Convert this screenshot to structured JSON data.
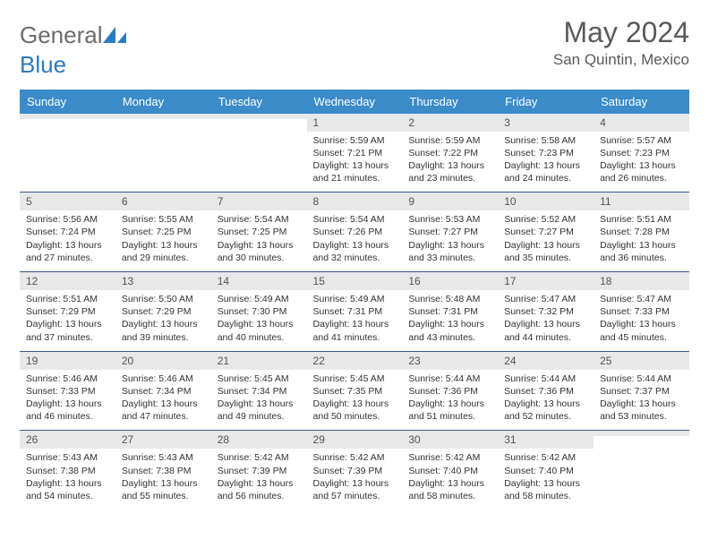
{
  "brand": {
    "left": "General",
    "right": "Blue"
  },
  "title": "May 2024",
  "location": "San Quintin, Mexico",
  "colors": {
    "header_bg": "#3b8bc9",
    "header_text": "#ffffff",
    "daynum_bg": "#e8e8e8",
    "row_border": "#3b5998",
    "logo_gray": "#6b6b6b",
    "logo_blue": "#2b7bbf",
    "text": "#333333"
  },
  "weekdays": [
    "Sunday",
    "Monday",
    "Tuesday",
    "Wednesday",
    "Thursday",
    "Friday",
    "Saturday"
  ],
  "weeks": [
    [
      {
        "empty": true
      },
      {
        "empty": true
      },
      {
        "empty": true
      },
      {
        "day": "1",
        "sunrise": "Sunrise: 5:59 AM",
        "sunset": "Sunset: 7:21 PM",
        "daylight": "Daylight: 13 hours and 21 minutes."
      },
      {
        "day": "2",
        "sunrise": "Sunrise: 5:59 AM",
        "sunset": "Sunset: 7:22 PM",
        "daylight": "Daylight: 13 hours and 23 minutes."
      },
      {
        "day": "3",
        "sunrise": "Sunrise: 5:58 AM",
        "sunset": "Sunset: 7:23 PM",
        "daylight": "Daylight: 13 hours and 24 minutes."
      },
      {
        "day": "4",
        "sunrise": "Sunrise: 5:57 AM",
        "sunset": "Sunset: 7:23 PM",
        "daylight": "Daylight: 13 hours and 26 minutes."
      }
    ],
    [
      {
        "day": "5",
        "sunrise": "Sunrise: 5:56 AM",
        "sunset": "Sunset: 7:24 PM",
        "daylight": "Daylight: 13 hours and 27 minutes."
      },
      {
        "day": "6",
        "sunrise": "Sunrise: 5:55 AM",
        "sunset": "Sunset: 7:25 PM",
        "daylight": "Daylight: 13 hours and 29 minutes."
      },
      {
        "day": "7",
        "sunrise": "Sunrise: 5:54 AM",
        "sunset": "Sunset: 7:25 PM",
        "daylight": "Daylight: 13 hours and 30 minutes."
      },
      {
        "day": "8",
        "sunrise": "Sunrise: 5:54 AM",
        "sunset": "Sunset: 7:26 PM",
        "daylight": "Daylight: 13 hours and 32 minutes."
      },
      {
        "day": "9",
        "sunrise": "Sunrise: 5:53 AM",
        "sunset": "Sunset: 7:27 PM",
        "daylight": "Daylight: 13 hours and 33 minutes."
      },
      {
        "day": "10",
        "sunrise": "Sunrise: 5:52 AM",
        "sunset": "Sunset: 7:27 PM",
        "daylight": "Daylight: 13 hours and 35 minutes."
      },
      {
        "day": "11",
        "sunrise": "Sunrise: 5:51 AM",
        "sunset": "Sunset: 7:28 PM",
        "daylight": "Daylight: 13 hours and 36 minutes."
      }
    ],
    [
      {
        "day": "12",
        "sunrise": "Sunrise: 5:51 AM",
        "sunset": "Sunset: 7:29 PM",
        "daylight": "Daylight: 13 hours and 37 minutes."
      },
      {
        "day": "13",
        "sunrise": "Sunrise: 5:50 AM",
        "sunset": "Sunset: 7:29 PM",
        "daylight": "Daylight: 13 hours and 39 minutes."
      },
      {
        "day": "14",
        "sunrise": "Sunrise: 5:49 AM",
        "sunset": "Sunset: 7:30 PM",
        "daylight": "Daylight: 13 hours and 40 minutes."
      },
      {
        "day": "15",
        "sunrise": "Sunrise: 5:49 AM",
        "sunset": "Sunset: 7:31 PM",
        "daylight": "Daylight: 13 hours and 41 minutes."
      },
      {
        "day": "16",
        "sunrise": "Sunrise: 5:48 AM",
        "sunset": "Sunset: 7:31 PM",
        "daylight": "Daylight: 13 hours and 43 minutes."
      },
      {
        "day": "17",
        "sunrise": "Sunrise: 5:47 AM",
        "sunset": "Sunset: 7:32 PM",
        "daylight": "Daylight: 13 hours and 44 minutes."
      },
      {
        "day": "18",
        "sunrise": "Sunrise: 5:47 AM",
        "sunset": "Sunset: 7:33 PM",
        "daylight": "Daylight: 13 hours and 45 minutes."
      }
    ],
    [
      {
        "day": "19",
        "sunrise": "Sunrise: 5:46 AM",
        "sunset": "Sunset: 7:33 PM",
        "daylight": "Daylight: 13 hours and 46 minutes."
      },
      {
        "day": "20",
        "sunrise": "Sunrise: 5:46 AM",
        "sunset": "Sunset: 7:34 PM",
        "daylight": "Daylight: 13 hours and 47 minutes."
      },
      {
        "day": "21",
        "sunrise": "Sunrise: 5:45 AM",
        "sunset": "Sunset: 7:34 PM",
        "daylight": "Daylight: 13 hours and 49 minutes."
      },
      {
        "day": "22",
        "sunrise": "Sunrise: 5:45 AM",
        "sunset": "Sunset: 7:35 PM",
        "daylight": "Daylight: 13 hours and 50 minutes."
      },
      {
        "day": "23",
        "sunrise": "Sunrise: 5:44 AM",
        "sunset": "Sunset: 7:36 PM",
        "daylight": "Daylight: 13 hours and 51 minutes."
      },
      {
        "day": "24",
        "sunrise": "Sunrise: 5:44 AM",
        "sunset": "Sunset: 7:36 PM",
        "daylight": "Daylight: 13 hours and 52 minutes."
      },
      {
        "day": "25",
        "sunrise": "Sunrise: 5:44 AM",
        "sunset": "Sunset: 7:37 PM",
        "daylight": "Daylight: 13 hours and 53 minutes."
      }
    ],
    [
      {
        "day": "26",
        "sunrise": "Sunrise: 5:43 AM",
        "sunset": "Sunset: 7:38 PM",
        "daylight": "Daylight: 13 hours and 54 minutes."
      },
      {
        "day": "27",
        "sunrise": "Sunrise: 5:43 AM",
        "sunset": "Sunset: 7:38 PM",
        "daylight": "Daylight: 13 hours and 55 minutes."
      },
      {
        "day": "28",
        "sunrise": "Sunrise: 5:42 AM",
        "sunset": "Sunset: 7:39 PM",
        "daylight": "Daylight: 13 hours and 56 minutes."
      },
      {
        "day": "29",
        "sunrise": "Sunrise: 5:42 AM",
        "sunset": "Sunset: 7:39 PM",
        "daylight": "Daylight: 13 hours and 57 minutes."
      },
      {
        "day": "30",
        "sunrise": "Sunrise: 5:42 AM",
        "sunset": "Sunset: 7:40 PM",
        "daylight": "Daylight: 13 hours and 58 minutes."
      },
      {
        "day": "31",
        "sunrise": "Sunrise: 5:42 AM",
        "sunset": "Sunset: 7:40 PM",
        "daylight": "Daylight: 13 hours and 58 minutes."
      },
      {
        "empty": true
      }
    ]
  ]
}
